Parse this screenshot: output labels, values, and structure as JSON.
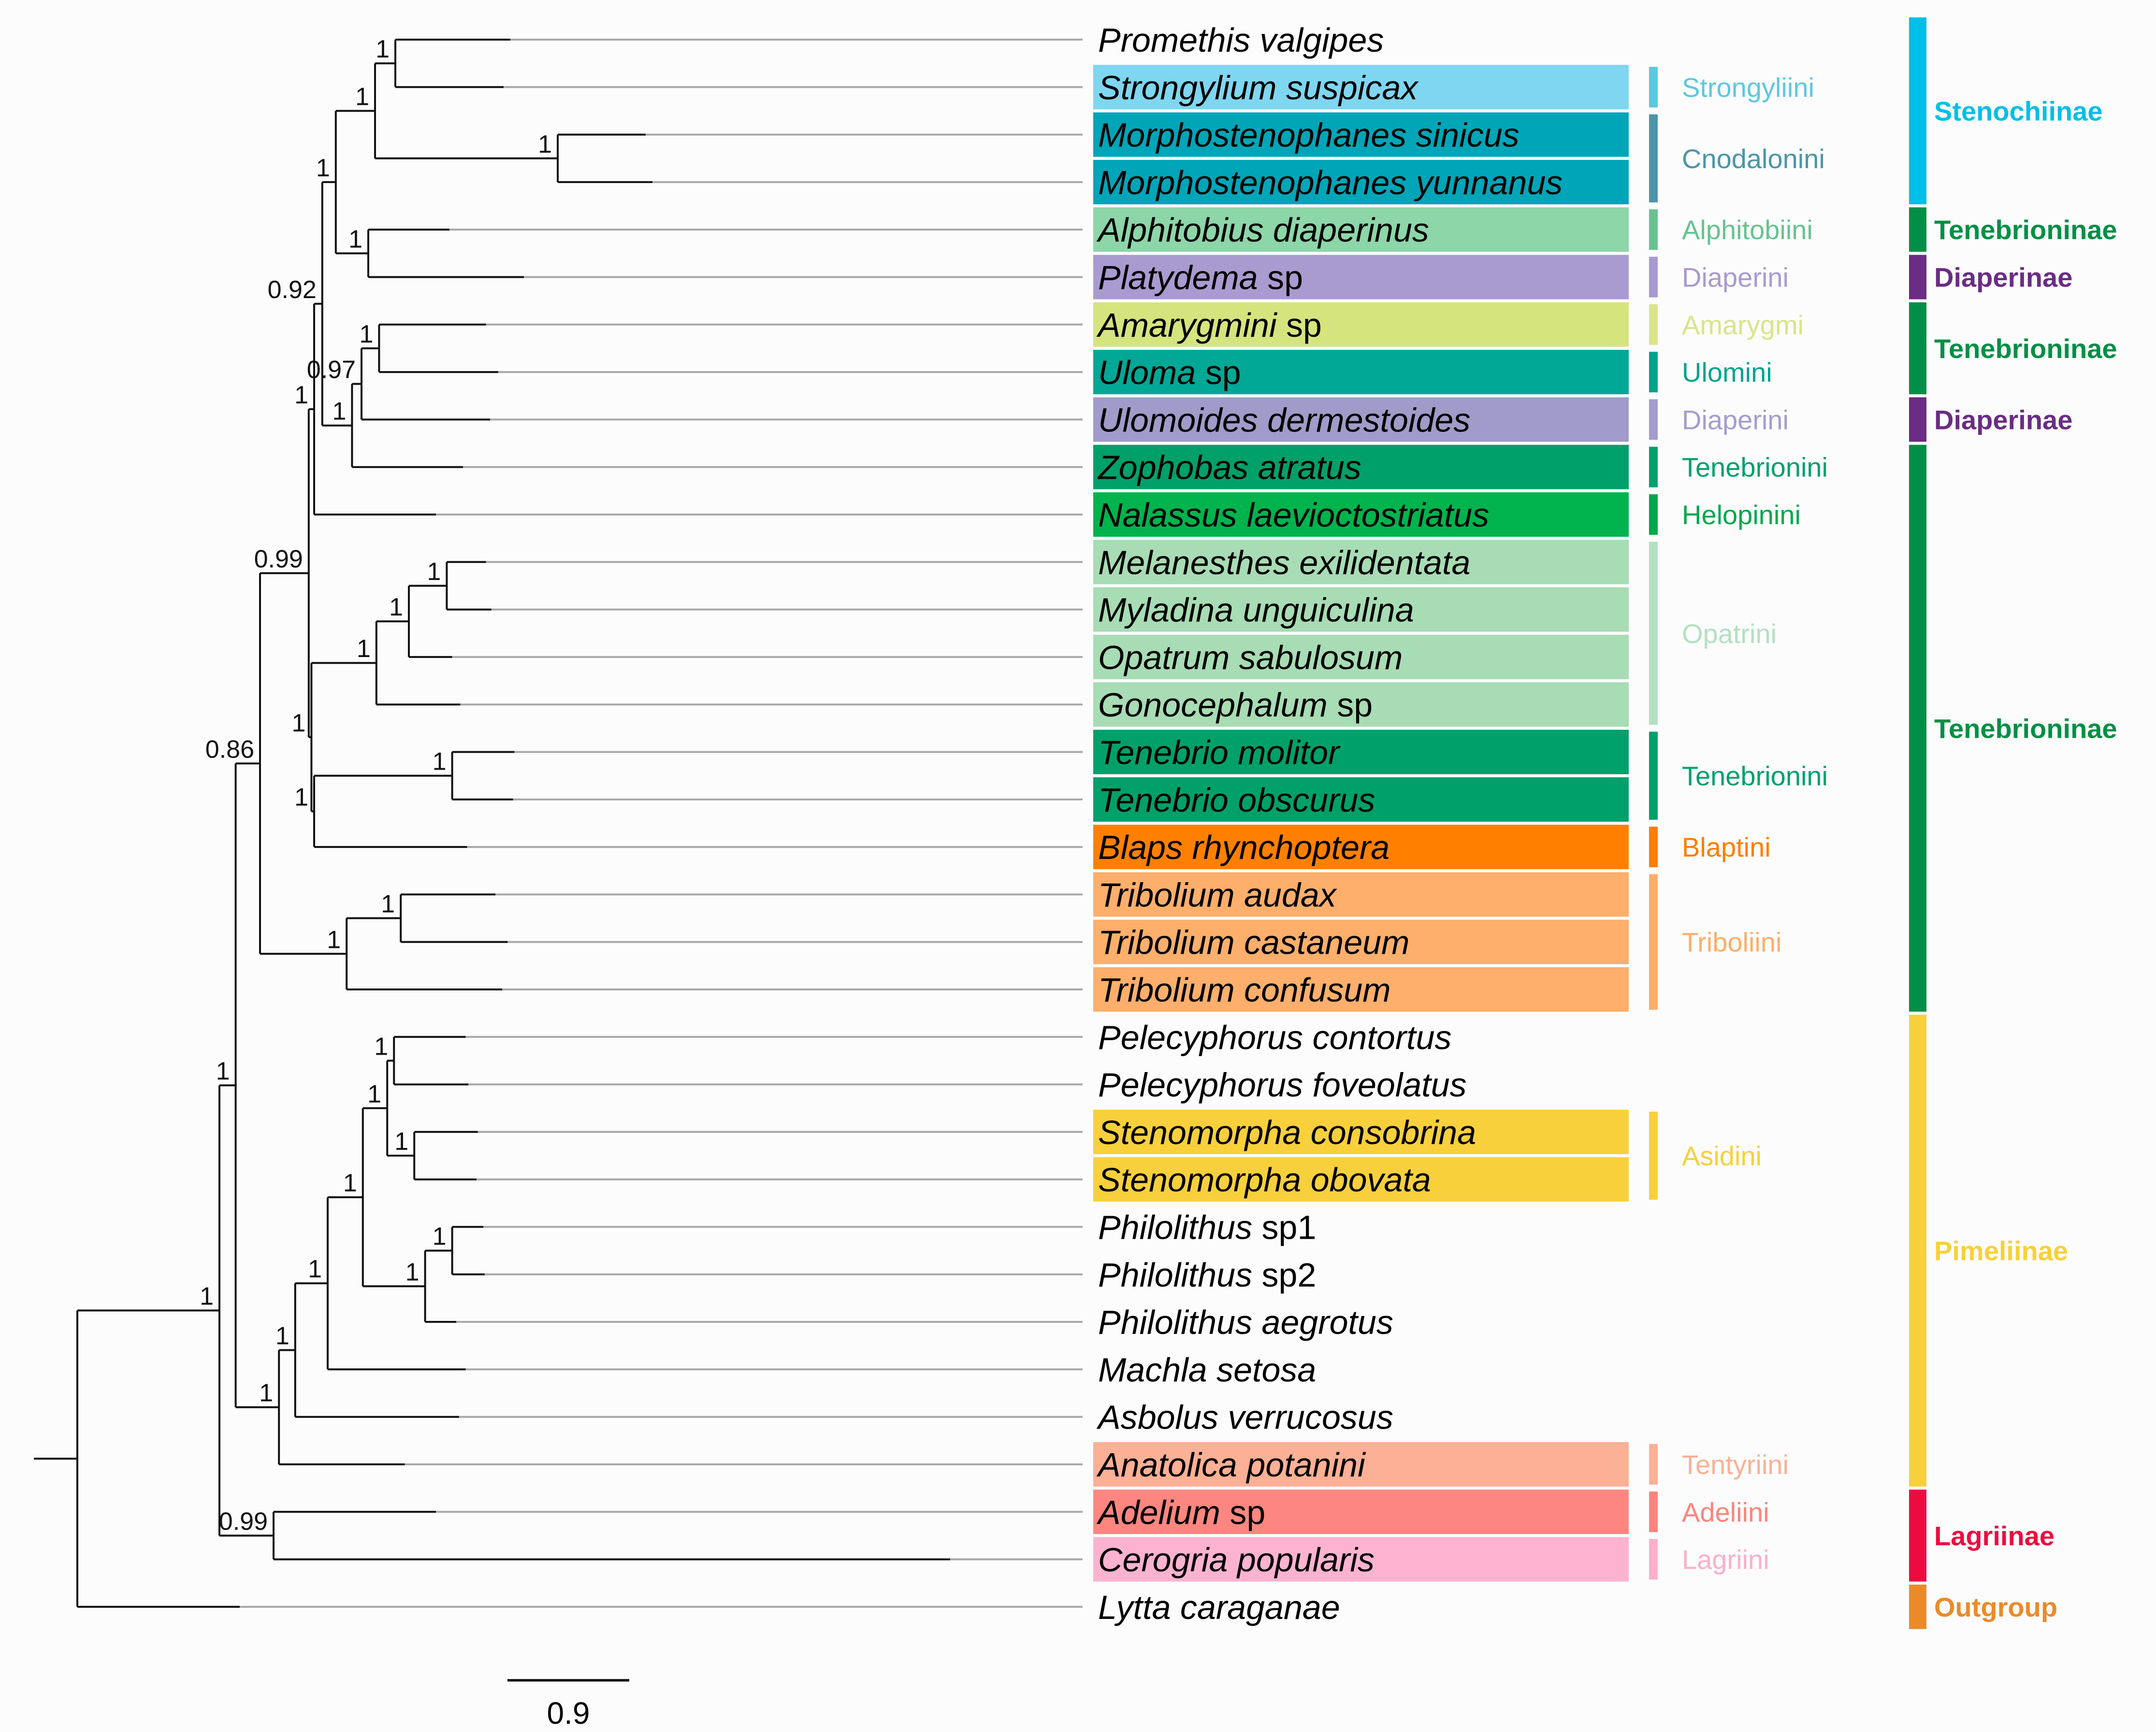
{
  "taxa": [
    {
      "genus": "Promethis valgipes",
      "suffix": "",
      "color": null
    },
    {
      "genus": "Strongylium suspicax",
      "suffix": "",
      "color": "#7fd6f0"
    },
    {
      "genus": "Morphostenophanes sinicus",
      "suffix": "",
      "color": "#00a5b8"
    },
    {
      "genus": "Morphostenophanes yunnanus",
      "suffix": "",
      "color": "#00a5b8"
    },
    {
      "genus": "Alphitobius diaperinus",
      "suffix": "",
      "color": "#8dd6a8"
    },
    {
      "genus": "Platydema",
      "suffix": " sp",
      "color": "#a99bd0"
    },
    {
      "genus": "Amarygmini",
      "suffix": " sp",
      "color": "#d6e47e"
    },
    {
      "genus": "Uloma",
      "suffix": " sp",
      "color": "#00a895"
    },
    {
      "genus": "Ulomoides dermestoides",
      "suffix": "",
      "color": "#a09bc8"
    },
    {
      "genus": "Zophobas atratus",
      "suffix": "",
      "color": "#00a06b"
    },
    {
      "genus": "Nalassus laevioctostriatus",
      "suffix": "",
      "color": "#00b34d"
    },
    {
      "genus": "Melanesthes exilidentata",
      "suffix": "",
      "color": "#a8dcb4"
    },
    {
      "genus": "Myladina unguiculina",
      "suffix": "",
      "color": "#a8dcb4"
    },
    {
      "genus": "Opatrum sabulosum",
      "suffix": "",
      "color": "#a8dcb4"
    },
    {
      "genus": "Gonocephalum",
      "suffix": " sp",
      "color": "#a8dcb4"
    },
    {
      "genus": "Tenebrio molitor",
      "suffix": "",
      "color": "#00a06b"
    },
    {
      "genus": "Tenebrio obscurus",
      "suffix": "",
      "color": "#00a06b"
    },
    {
      "genus": "Blaps rhynchoptera",
      "suffix": "",
      "color": "#ff8000"
    },
    {
      "genus": "Tribolium audax",
      "suffix": "",
      "color": "#fdaf6b"
    },
    {
      "genus": "Tribolium castaneum",
      "suffix": "",
      "color": "#fdaf6b"
    },
    {
      "genus": "Tribolium confusum",
      "suffix": "",
      "color": "#fdaf6b"
    },
    {
      "genus": "Pelecyphorus contortus",
      "suffix": "",
      "color": null
    },
    {
      "genus": "Pelecyphorus foveolatus",
      "suffix": "",
      "color": null
    },
    {
      "genus": "Stenomorpha consobrina",
      "suffix": "",
      "color": "#f8d03c"
    },
    {
      "genus": "Stenomorpha obovata",
      "suffix": "",
      "color": "#f8d03c"
    },
    {
      "genus": "Philolithus",
      "suffix": " sp1",
      "color": null
    },
    {
      "genus": "Philolithus",
      "suffix": " sp2",
      "color": null
    },
    {
      "genus": "Philolithus aegrotus",
      "suffix": "",
      "color": null
    },
    {
      "genus": "Machla setosa",
      "suffix": "",
      "color": null
    },
    {
      "genus": "Asbolus verrucosus",
      "suffix": "",
      "color": null
    },
    {
      "genus": "Anatolica potanini",
      "suffix": "",
      "color": "#fcb096"
    },
    {
      "genus": "Adelium",
      "suffix": " sp",
      "color": "#fd8680"
    },
    {
      "genus": "Cerogria popularis",
      "suffix": "",
      "color": "#fdb3cf"
    },
    {
      "genus": "Lytta caraganae",
      "suffix": "",
      "color": null
    }
  ],
  "tree": {
    "l": "",
    "x": 0.25,
    "c": [
      {
        "l": "1",
        "x": 1.3,
        "c": [
          {
            "l": "1",
            "x": 1.42,
            "c": [
              {
                "l": "0.86",
                "x": 1.6,
                "c": [
                  {
                    "l": "0.99",
                    "x": 1.96,
                    "c": [
                      {
                        "l": "1",
                        "x": 2.0,
                        "c": [
                          {
                            "l": "0.92",
                            "x": 2.06,
                            "c": [
                              {
                                "l": "1",
                                "x": 2.16,
                                "c": [
                                  {
                                    "l": "1",
                                    "x": 2.45,
                                    "c": [
                                      {
                                        "l": "1",
                                        "x": 2.6,
                                        "c": [
                                          {
                                            "t": 0,
                                            "x": 3.45
                                          },
                                          {
                                            "t": 1,
                                            "x": 3.4
                                          }
                                        ]
                                      },
                                      {
                                        "l": "1",
                                        "x": 3.8,
                                        "c": [
                                          {
                                            "t": 2,
                                            "x": 4.45
                                          },
                                          {
                                            "t": 3,
                                            "x": 4.5
                                          }
                                        ]
                                      }
                                    ]
                                  },
                                  {
                                    "l": "1",
                                    "x": 2.4,
                                    "c": [
                                      {
                                        "t": 4,
                                        "x": 3.0
                                      },
                                      {
                                        "t": 5,
                                        "x": 3.55
                                      }
                                    ]
                                  }
                                ]
                              },
                              {
                                "l": "1",
                                "x": 2.28,
                                "c": [
                                  {
                                    "l": "0.97",
                                    "x": 2.35,
                                    "c": [
                                      {
                                        "l": "1",
                                        "x": 2.48,
                                        "c": [
                                          {
                                            "t": 6,
                                            "x": 3.27
                                          },
                                          {
                                            "t": 7,
                                            "x": 3.36
                                          }
                                        ]
                                      },
                                      {
                                        "t": 8,
                                        "x": 3.3
                                      }
                                    ]
                                  },
                                  {
                                    "t": 9,
                                    "x": 3.1
                                  }
                                ]
                              }
                            ]
                          },
                          {
                            "t": 10,
                            "x": 2.9
                          }
                        ]
                      },
                      {
                        "l": "1",
                        "x": 1.98,
                        "c": [
                          {
                            "l": "1",
                            "x": 2.46,
                            "c": [
                              {
                                "l": "1",
                                "x": 2.7,
                                "c": [
                                  {
                                    "l": "1",
                                    "x": 2.98,
                                    "c": [
                                      {
                                        "t": 11,
                                        "x": 3.27
                                      },
                                      {
                                        "t": 12,
                                        "x": 3.31
                                      }
                                    ]
                                  },
                                  {
                                    "t": 13,
                                    "x": 3.02
                                  }
                                ]
                              },
                              {
                                "t": 14,
                                "x": 3.08
                              }
                            ]
                          },
                          {
                            "l": "1",
                            "x": 2.0,
                            "c": [
                              {
                                "l": "1",
                                "x": 3.02,
                                "c": [
                                  {
                                    "t": 15,
                                    "x": 3.48
                                  },
                                  {
                                    "t": 16,
                                    "x": 3.47
                                  }
                                ]
                              },
                              {
                                "t": 17,
                                "x": 3.13
                              }
                            ]
                          }
                        ]
                      }
                    ]
                  },
                  {
                    "l": "1",
                    "x": 2.24,
                    "c": [
                      {
                        "l": "1",
                        "x": 2.64,
                        "c": [
                          {
                            "t": 18,
                            "x": 3.34
                          },
                          {
                            "t": 19,
                            "x": 3.43
                          }
                        ]
                      },
                      {
                        "t": 20,
                        "x": 3.39
                      }
                    ]
                  }
                ]
              },
              {
                "l": "1",
                "x": 1.74,
                "c": [
                  {
                    "l": "1",
                    "x": 1.86,
                    "c": [
                      {
                        "l": "1",
                        "x": 2.1,
                        "c": [
                          {
                            "l": "1",
                            "x": 2.36,
                            "c": [
                              {
                                "l": "1",
                                "x": 2.54,
                                "c": [
                                  {
                                    "l": "1",
                                    "x": 2.59,
                                    "c": [
                                      {
                                        "t": 21,
                                        "x": 3.12
                                      },
                                      {
                                        "t": 22,
                                        "x": 3.14
                                      }
                                    ]
                                  },
                                  {
                                    "l": "1",
                                    "x": 2.74,
                                    "c": [
                                      {
                                        "t": 23,
                                        "x": 3.21
                                      },
                                      {
                                        "t": 24,
                                        "x": 3.2
                                      }
                                    ]
                                  }
                                ]
                              },
                              {
                                "l": "1",
                                "x": 2.82,
                                "c": [
                                  {
                                    "l": "1",
                                    "x": 3.02,
                                    "c": [
                                      {
                                        "t": 25,
                                        "x": 3.25
                                      },
                                      {
                                        "t": 26,
                                        "x": 3.26
                                      }
                                    ]
                                  },
                                  {
                                    "t": 27,
                                    "x": 3.05
                                  }
                                ]
                              }
                            ]
                          },
                          {
                            "t": 28,
                            "x": 3.12
                          }
                        ]
                      },
                      {
                        "t": 29,
                        "x": 3.07
                      }
                    ]
                  },
                  {
                    "t": 30,
                    "x": 2.67
                  }
                ]
              }
            ]
          },
          {
            "l": "0.99",
            "x": 1.7,
            "c": [
              {
                "t": 31,
                "x": 2.9
              },
              {
                "t": 32,
                "x": 6.7
              }
            ]
          }
        ]
      },
      {
        "t": 33,
        "x": 1.45
      }
    ]
  },
  "tribes": [
    {
      "name": "Strongyliini",
      "from": 1,
      "to": 1,
      "color": "#5cc8e0"
    },
    {
      "name": "Cnodalonini",
      "from": 2,
      "to": 3,
      "color": "#4a96a8"
    },
    {
      "name": "Alphitobiini",
      "from": 4,
      "to": 4,
      "color": "#68c290"
    },
    {
      "name": "Diaperini",
      "from": 5,
      "to": 5,
      "color": "#a89ad0"
    },
    {
      "name": "Amarygmi",
      "from": 6,
      "to": 6,
      "color": "#d9e48a"
    },
    {
      "name": "Ulomini",
      "from": 7,
      "to": 7,
      "color": "#00a48e"
    },
    {
      "name": "Diaperini",
      "from": 8,
      "to": 8,
      "color": "#a59cce"
    },
    {
      "name": "Tenebrionini",
      "from": 9,
      "to": 9,
      "color": "#00a06b"
    },
    {
      "name": "Helopinini",
      "from": 10,
      "to": 10,
      "color": "#00a84a"
    },
    {
      "name": "Opatrini",
      "from": 11,
      "to": 14,
      "color": "#b4e0c0"
    },
    {
      "name": "Tenebrionini",
      "from": 15,
      "to": 16,
      "color": "#00a06b"
    },
    {
      "name": "Blaptini",
      "from": 17,
      "to": 17,
      "color": "#ff7d00"
    },
    {
      "name": "Triboliini",
      "from": 18,
      "to": 20,
      "color": "#fcae68"
    },
    {
      "name": "Asidini",
      "from": 23,
      "to": 24,
      "color": "#f8d03c"
    },
    {
      "name": "Tentyriini",
      "from": 30,
      "to": 30,
      "color": "#fcb096"
    },
    {
      "name": "Adeliini",
      "from": 31,
      "to": 31,
      "color": "#fd847d"
    },
    {
      "name": "Lagriini",
      "from": 32,
      "to": 32,
      "color": "#fcafca"
    }
  ],
  "subfamilies": [
    {
      "name": "Stenochiinae",
      "from": 0,
      "to": 3,
      "color": "#00bfe8"
    },
    {
      "name": "Tenebrioninae",
      "from": 4,
      "to": 4,
      "color": "#008f45"
    },
    {
      "name": "Diaperinae",
      "from": 5,
      "to": 5,
      "color": "#6a2c84"
    },
    {
      "name": "Tenebrioninae",
      "from": 6,
      "to": 7,
      "color": "#008f45"
    },
    {
      "name": "Diaperinae",
      "from": 8,
      "to": 8,
      "color": "#6a2c84"
    },
    {
      "name": "Tenebrioninae",
      "from": 9,
      "to": 20,
      "color": "#008f45"
    },
    {
      "name": "Pimeliinae",
      "from": 21,
      "to": 30,
      "color": "#f8d03c"
    },
    {
      "name": "Lagriinae",
      "from": 31,
      "to": 32,
      "color": "#ee0a40"
    },
    {
      "name": "Outgroup",
      "from": 33,
      "to": 33,
      "color": "#ec8a28"
    }
  ],
  "scale_bar": {
    "label": "0.9",
    "length": 0.9
  }
}
